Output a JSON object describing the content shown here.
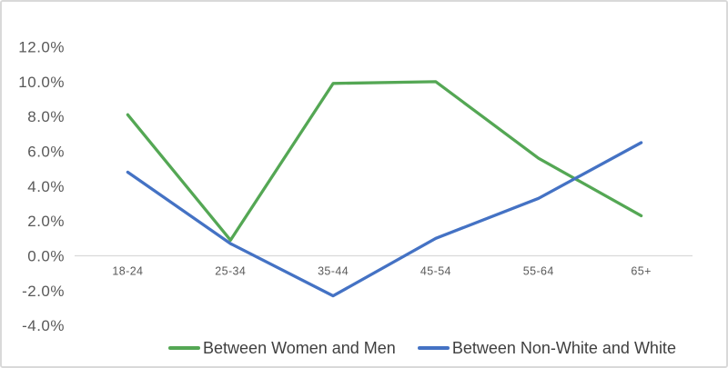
{
  "window": {
    "background": "#ffffff",
    "border_color": "#d9d9d9"
  },
  "chart_data": {
    "type": "line",
    "title": "",
    "categories": [
      "18-24",
      "25-34",
      "35-44",
      "45-54",
      "55-64",
      "65+"
    ],
    "series": [
      {
        "name": "Between Women and Men",
        "color": "#54a754",
        "values": [
          8.1,
          0.9,
          9.9,
          10.0,
          5.6,
          2.3
        ]
      },
      {
        "name": "Between Non-White and White",
        "color": "#4472c4",
        "values": [
          4.8,
          0.7,
          -2.3,
          1.0,
          3.3,
          6.5
        ]
      }
    ],
    "y_axis": {
      "min": -4.0,
      "max": 12.0,
      "step": 2.0,
      "tick_labels": [
        "12.0%",
        "10.0%",
        "8.0%",
        "6.0%",
        "4.0%",
        "2.0%",
        "0.0%",
        "-2.0%",
        "-4.0%"
      ],
      "tick_label_color": "#595959"
    },
    "x_axis": {
      "tick_label_color": "#595959"
    },
    "baseline_color": "#d9d9d9",
    "grid": false,
    "legend_position": "bottom",
    "legend_text_color": "#404040",
    "ylim": [
      -4.0,
      12.0
    ]
  }
}
